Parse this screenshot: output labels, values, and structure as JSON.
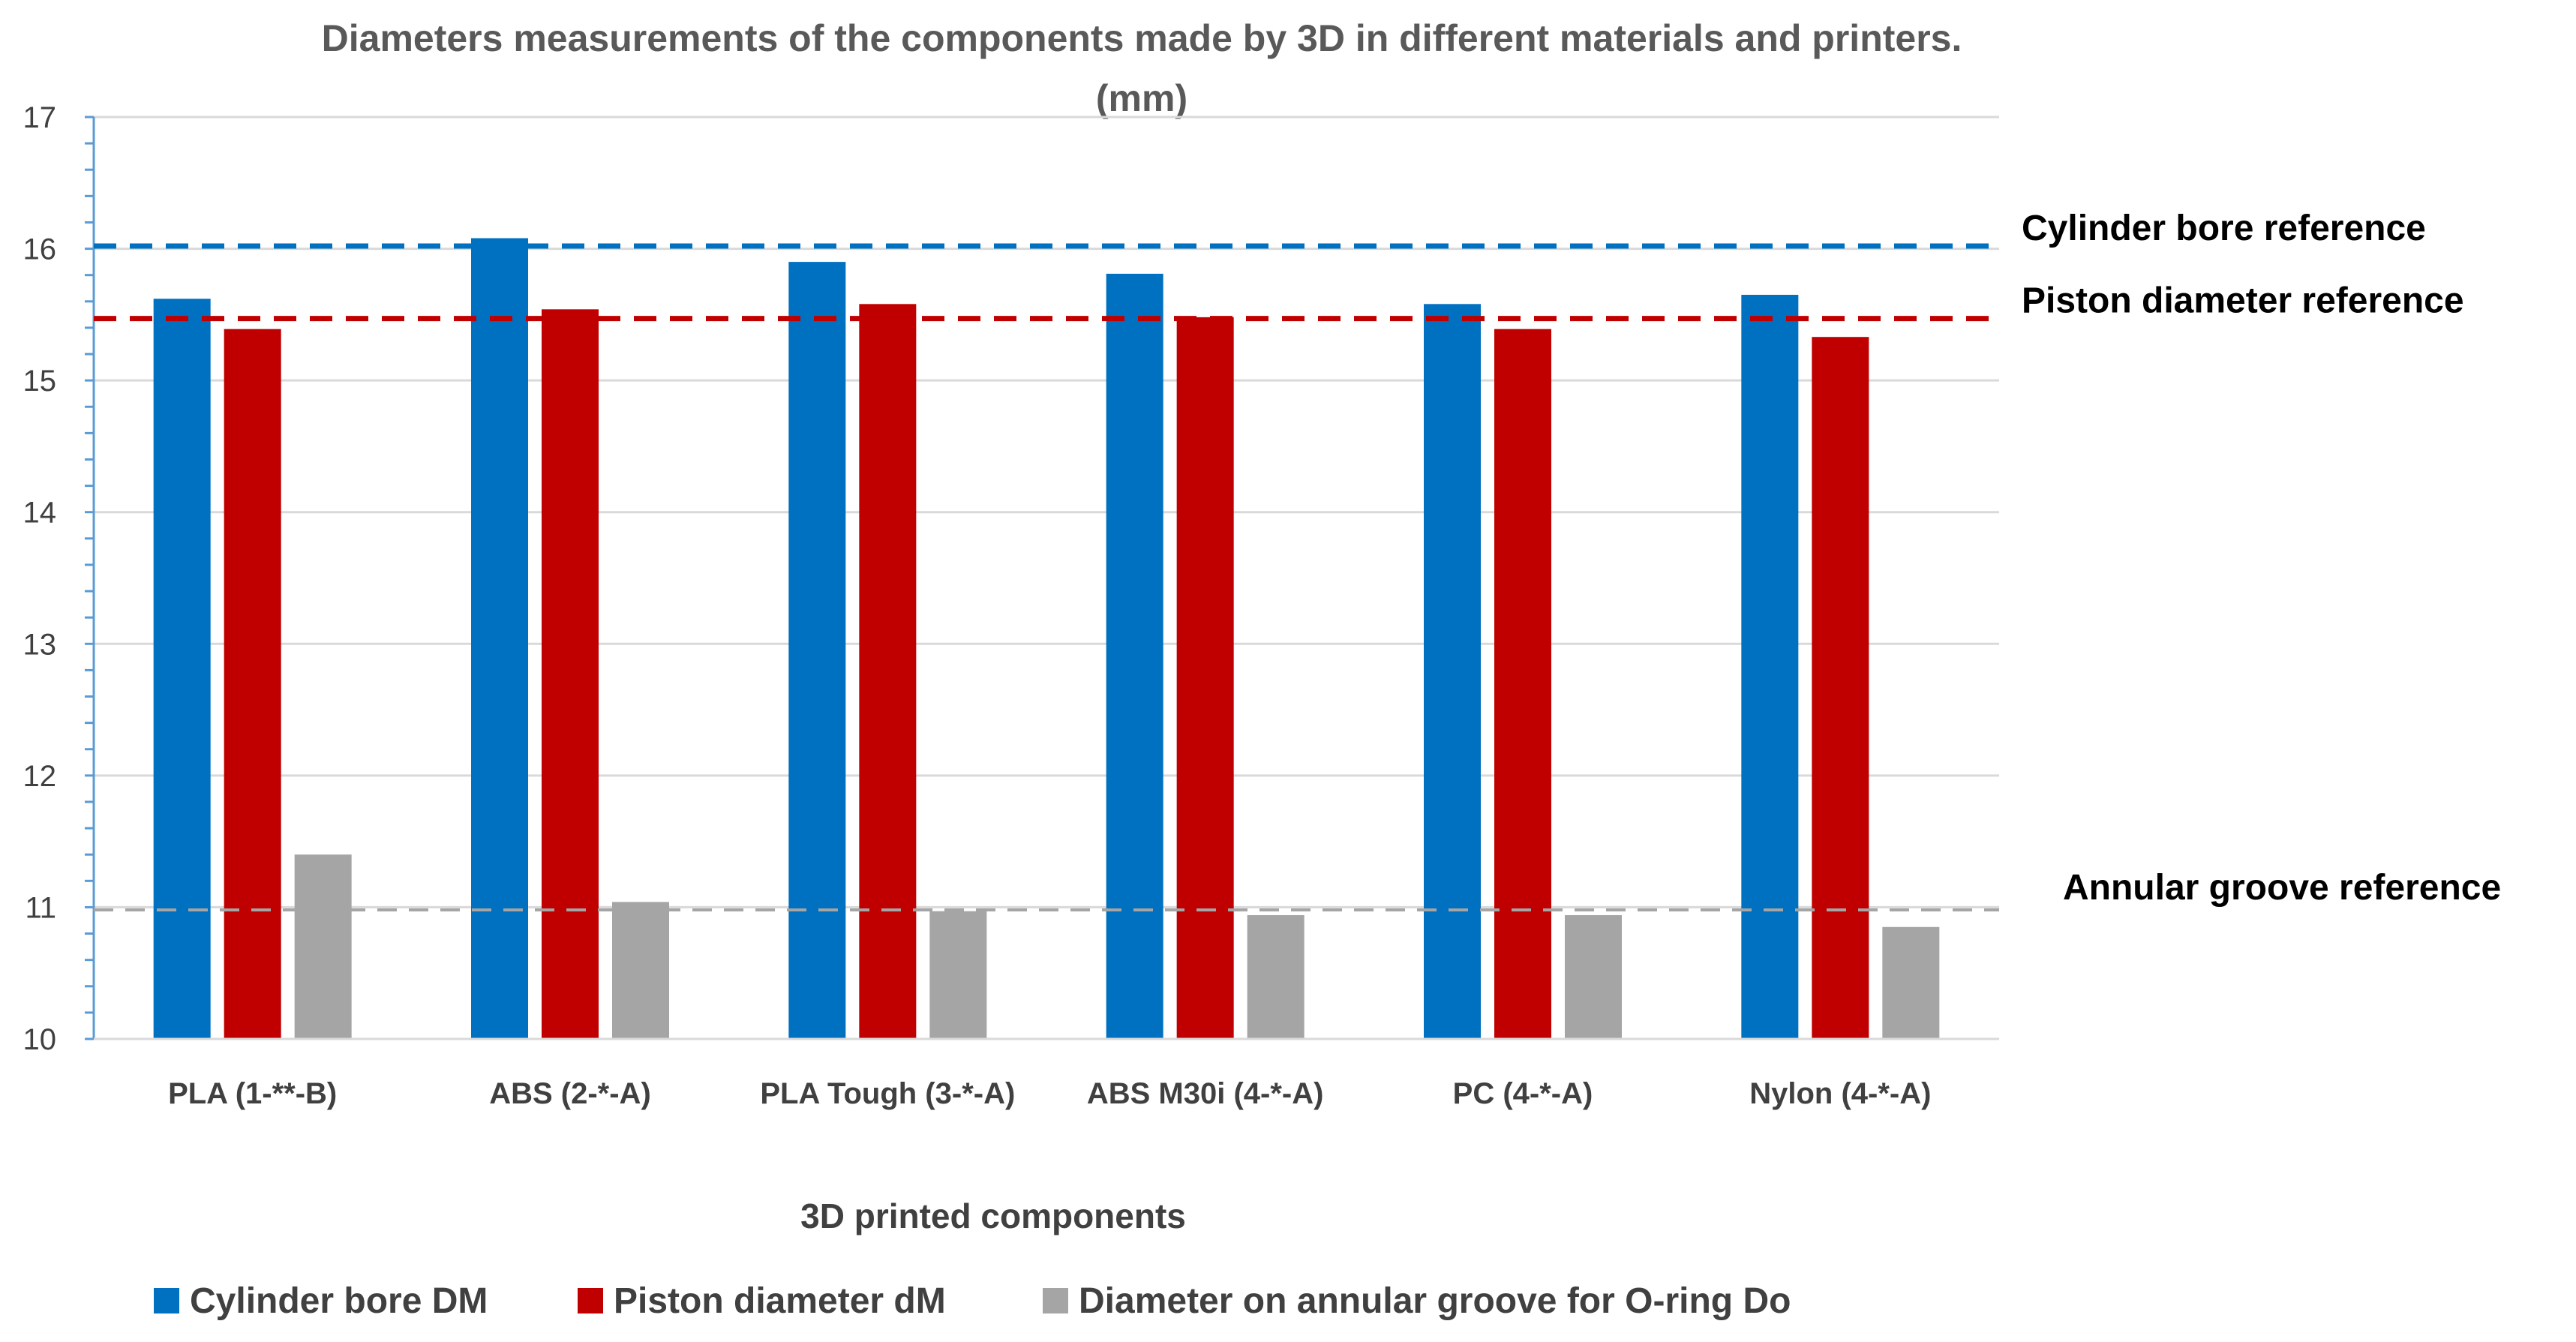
{
  "chart_data": {
    "type": "bar",
    "title_line1": "Diameters measurements of the components made by 3D in different materials and printers.",
    "title_line2": "(mm)",
    "xlabel": "3D printed components",
    "ylabel": "",
    "ylim": [
      10,
      17
    ],
    "yticks": [
      "10",
      "11",
      "12",
      "13",
      "14",
      "15",
      "16",
      "17"
    ],
    "grid": true,
    "legend_position": "bottom",
    "categories": [
      "PLA  (1-**-B)",
      "ABS (2-*-A)",
      "PLA Tough (3-*-A)",
      "ABS M30i (4-*-A)",
      "PC (4-*-A)",
      "Nylon (4-*-A)"
    ],
    "series": [
      {
        "name": "Cylinder bore DM",
        "color": "#0070C0",
        "values": [
          15.62,
          16.08,
          15.9,
          15.81,
          15.58,
          15.65
        ]
      },
      {
        "name": "Piston diameter dM",
        "color": "#C00000",
        "values": [
          15.39,
          15.54,
          15.58,
          15.48,
          15.39,
          15.33
        ]
      },
      {
        "name": "Diameter on annular groove for O-ring Do",
        "color": "#A5A5A5",
        "values": [
          11.4,
          11.04,
          10.97,
          10.94,
          10.94,
          10.85
        ]
      }
    ],
    "reference_lines": [
      {
        "label": "Cylinder bore reference",
        "value": 16.02,
        "color": "#0070C0"
      },
      {
        "label": "Piston diameter reference",
        "value": 15.47,
        "color": "#C00000"
      },
      {
        "label": "Annular groove reference",
        "value": 10.98,
        "color": "#A5A5A5"
      }
    ]
  }
}
